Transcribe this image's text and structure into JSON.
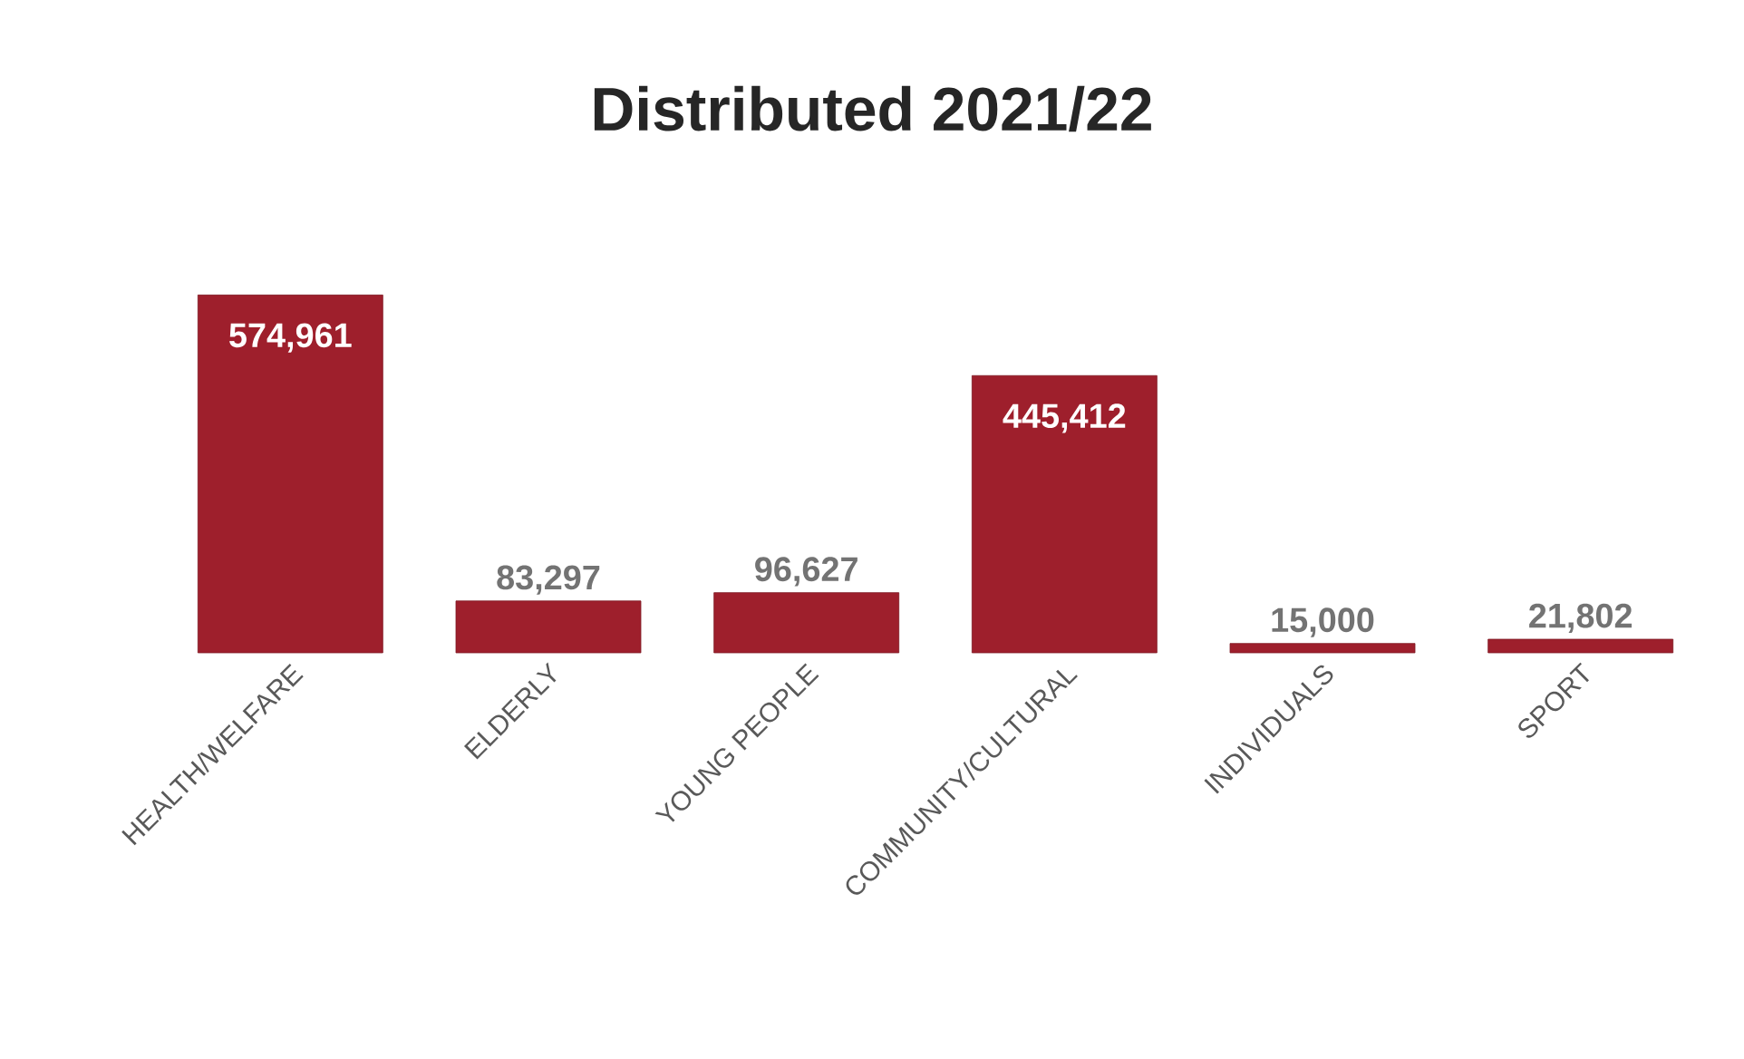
{
  "chart_data": {
    "type": "bar",
    "title": "Distributed 2021/22",
    "categories": [
      "HEALTH/WELFARE",
      "ELDERLY",
      "YOUNG PEOPLE",
      "COMMUNITY/CULTURAL",
      "INDIVIDUALS",
      "SPORT"
    ],
    "values": [
      574961,
      83297,
      96627,
      445412,
      15000,
      21802
    ],
    "value_labels": [
      "574,961",
      "83,297",
      "96,627",
      "445,412",
      "15,000",
      "21,802"
    ],
    "color": "#9e1f2c"
  }
}
